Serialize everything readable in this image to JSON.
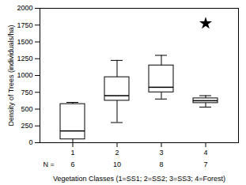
{
  "chart_data": {
    "type": "box",
    "categories": [
      "1",
      "2",
      "3",
      "4"
    ],
    "box_stats": [
      {
        "med": 175,
        "q1": 50,
        "q3": 575,
        "whislo": 0,
        "whishi": 600,
        "fliers": []
      },
      {
        "med": 700,
        "q1": 625,
        "q3": 975,
        "whislo": 300,
        "whishi": 1225,
        "fliers": []
      },
      {
        "med": 825,
        "q1": 750,
        "q3": 1150,
        "whislo": 650,
        "whishi": 1300,
        "fliers": []
      },
      {
        "med": 625,
        "q1": 590,
        "q3": 660,
        "whislo": 530,
        "whishi": 700,
        "fliers": [
          1775
        ]
      }
    ],
    "counts_label": "N =",
    "counts": [
      6,
      10,
      8,
      7
    ],
    "ylabel": "Density of Trees (individuals/ha)",
    "xlabel": "Vegetation Classes (1=SS1; 2=SS2; 3=SS3; 4=Forest)",
    "ylim": [
      0,
      2000
    ],
    "yticks": [
      0,
      250,
      500,
      750,
      1000,
      1250,
      1500,
      1750,
      2000
    ],
    "color": "black",
    "marker": "star",
    "grid": false
  }
}
